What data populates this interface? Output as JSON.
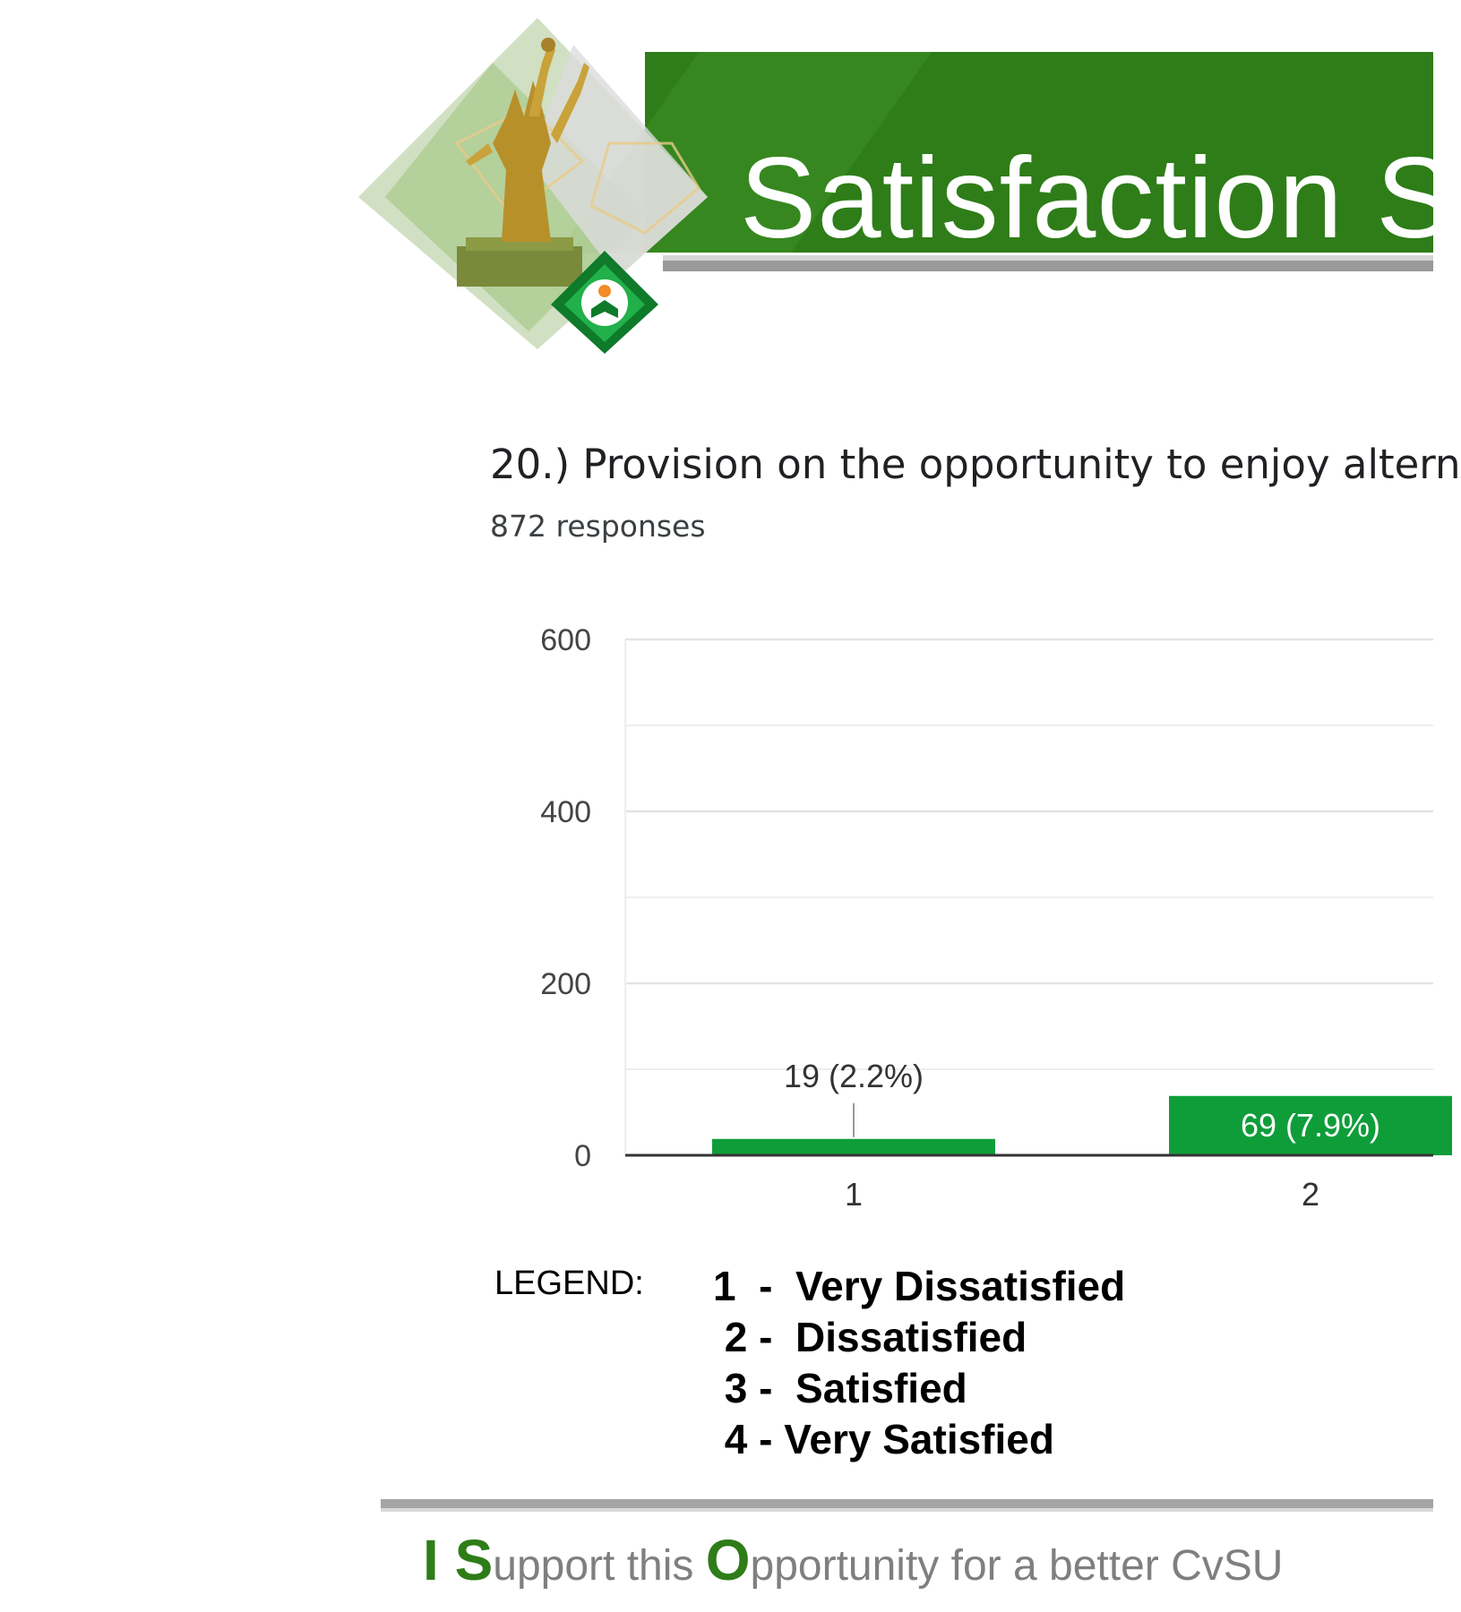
{
  "header": {
    "title": "Satisfaction S",
    "colors": {
      "banner": "#2e7d18",
      "accent_gray": "#9a9a9a"
    }
  },
  "question": {
    "text": "20.) Provision on the opportunity to enjoy altern",
    "responses": "872 responses"
  },
  "chart_data": {
    "type": "bar",
    "categories": [
      "1",
      "2"
    ],
    "values": [
      19,
      69
    ],
    "data_labels": [
      "19 (2.2%)",
      "69 (7.9%)"
    ],
    "ylim": [
      0,
      600
    ],
    "yticks": [
      0,
      200,
      400,
      600
    ],
    "ytick_labels": [
      "0",
      "200",
      "400",
      "600"
    ],
    "grid": true,
    "bar_color": "#0f9d3a",
    "title": "",
    "xlabel": "",
    "ylabel": ""
  },
  "legend": {
    "label": "LEGEND:",
    "items": [
      "1  -  Very Dissatisfied",
      " 2 -  Dissatisfied",
      " 3 -  Satisfied",
      " 4 - Very Satisfied"
    ]
  },
  "footer": {
    "slogan_parts": [
      "I ",
      "S",
      "upport this ",
      "O",
      "pportunity for a better CvSU"
    ]
  }
}
